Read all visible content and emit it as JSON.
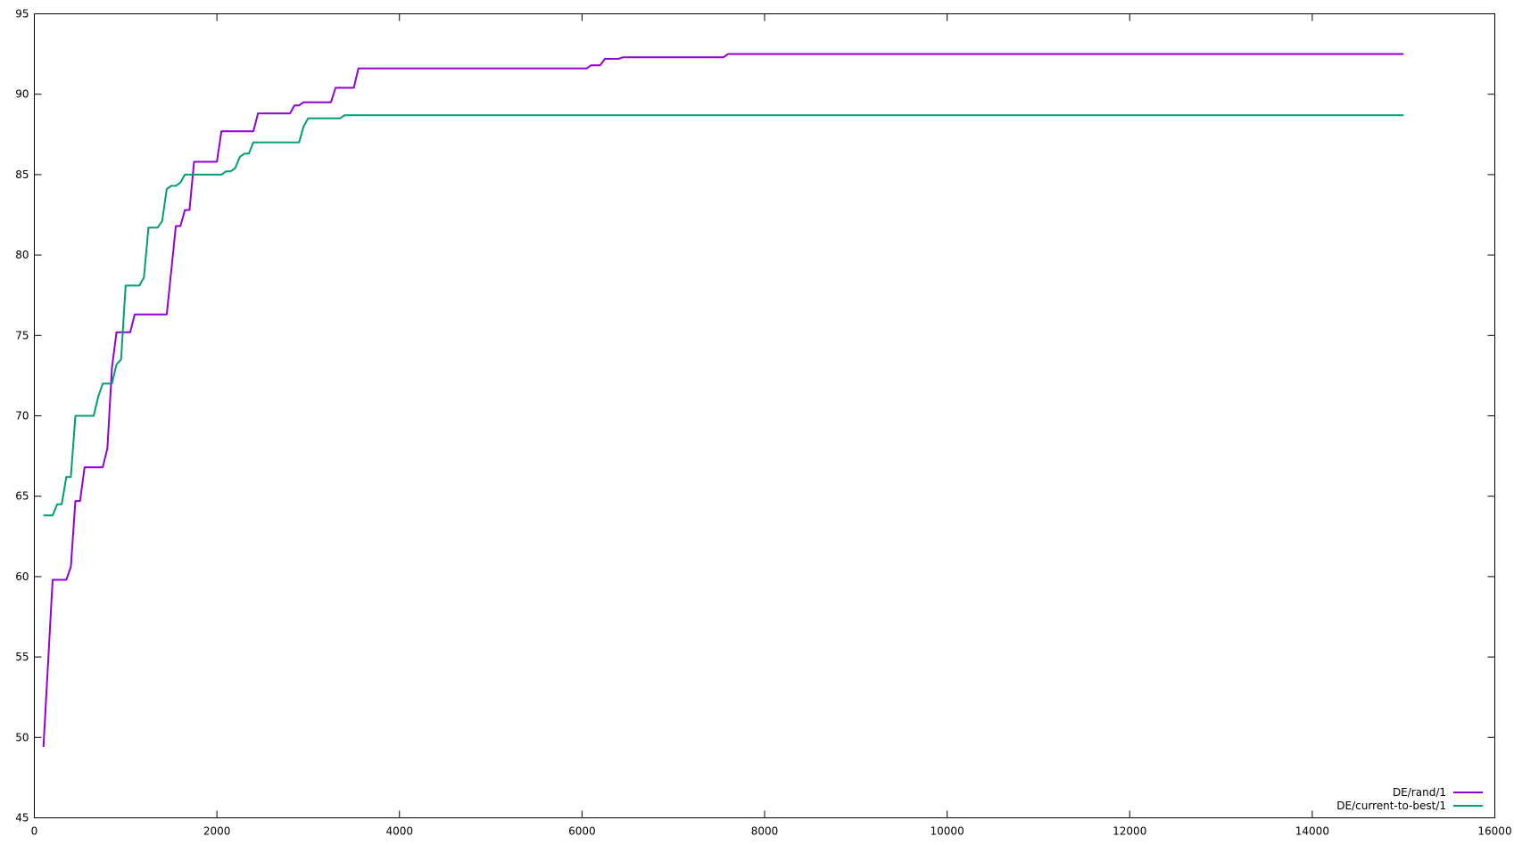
{
  "chart_data": {
    "type": "line",
    "title": "",
    "xlabel": "",
    "ylabel": "",
    "xlim": [
      0,
      16000
    ],
    "ylim": [
      45,
      95
    ],
    "xticks": [
      0,
      2000,
      4000,
      6000,
      8000,
      10000,
      12000,
      14000,
      16000
    ],
    "yticks": [
      45,
      50,
      55,
      60,
      65,
      70,
      75,
      80,
      85,
      90,
      95
    ],
    "xtick_labels": [
      "0",
      "2000",
      "4000",
      "6000",
      "8000",
      "10000",
      "12000",
      "14000",
      "16000"
    ],
    "ytick_labels": [
      "45",
      "50",
      "55",
      "60",
      "65",
      "70",
      "75",
      "80",
      "85",
      "90",
      "95"
    ],
    "grid": false,
    "legend_position": "bottom-right",
    "series": [
      {
        "name": "DE/rand/1",
        "color": "#9400d3",
        "x": [
          100,
          200,
          350,
          400,
          450,
          500,
          550,
          600,
          750,
          800,
          850,
          900,
          1050,
          1100,
          1150,
          1450,
          1550,
          1600,
          1650,
          1700,
          1750,
          2000,
          2050,
          2400,
          2450,
          2800,
          2850,
          2900,
          2950,
          3250,
          3300,
          3500,
          3550,
          6050,
          6100,
          6200,
          6250,
          6400,
          6450,
          7550,
          7600,
          15000
        ],
        "y": [
          49.4,
          59.8,
          59.8,
          60.6,
          64.7,
          64.7,
          66.8,
          66.8,
          66.8,
          68.0,
          73.0,
          75.2,
          75.2,
          76.3,
          76.3,
          76.3,
          81.8,
          81.8,
          82.8,
          82.8,
          85.8,
          85.8,
          87.7,
          87.7,
          88.8,
          88.8,
          89.3,
          89.3,
          89.5,
          89.5,
          90.4,
          90.4,
          91.6,
          91.6,
          91.8,
          91.8,
          92.2,
          92.2,
          92.3,
          92.3,
          92.5,
          92.5
        ]
      },
      {
        "name": "DE/current-to-best/1",
        "color": "#009e73",
        "x": [
          100,
          150,
          200,
          250,
          300,
          350,
          400,
          450,
          500,
          650,
          700,
          750,
          800,
          850,
          900,
          950,
          1000,
          1150,
          1200,
          1250,
          1300,
          1350,
          1400,
          1450,
          1500,
          1550,
          1600,
          1650,
          2050,
          2100,
          2150,
          2200,
          2250,
          2300,
          2350,
          2400,
          2450,
          2500,
          2900,
          2950,
          3000,
          3350,
          3400,
          15000
        ],
        "y": [
          63.8,
          63.8,
          63.8,
          64.5,
          64.5,
          66.2,
          66.2,
          70.0,
          70.0,
          70.0,
          71.2,
          72.0,
          72.0,
          72.0,
          73.2,
          73.5,
          78.1,
          78.1,
          78.6,
          81.7,
          81.7,
          81.7,
          82.1,
          84.1,
          84.3,
          84.3,
          84.5,
          85.0,
          85.0,
          85.2,
          85.2,
          85.4,
          86.1,
          86.3,
          86.3,
          87.0,
          87.0,
          87.0,
          87.0,
          88.0,
          88.5,
          88.5,
          88.7,
          88.7
        ]
      }
    ]
  }
}
